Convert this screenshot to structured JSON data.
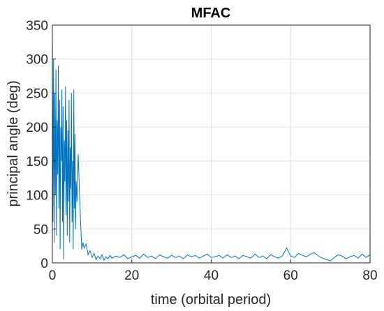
{
  "chart_data": {
    "type": "line",
    "title": "MFAC",
    "xlabel": "time (orbital period)",
    "ylabel": "principal angle (deg)",
    "xlim": [
      0,
      80
    ],
    "ylim": [
      0,
      350
    ],
    "x_ticks": [
      0,
      20,
      40,
      60,
      80
    ],
    "y_ticks": [
      0,
      50,
      100,
      150,
      200,
      250,
      300,
      350
    ],
    "grid": true,
    "line_color": "#0072BD",
    "series": [
      {
        "x": [
          0,
          0.15,
          0.3,
          0.45,
          0.6,
          0.75,
          0.9,
          1.05,
          1.2,
          1.35,
          1.5,
          1.65,
          1.8,
          1.95,
          2.1,
          2.25,
          2.4,
          2.55,
          2.7,
          2.85,
          3.0,
          3.15,
          3.3,
          3.45,
          3.6,
          3.75,
          3.9,
          4.05,
          4.2,
          4.35,
          4.5,
          4.65,
          4.8,
          4.95,
          5.1,
          5.25,
          5.4,
          5.55,
          5.7,
          5.85,
          6.0,
          6.2,
          6.5,
          6.8,
          7.1,
          7.4,
          7.7,
          8.0,
          8.5,
          9,
          9.5,
          10,
          10.5,
          11,
          11.5,
          12,
          12.5,
          13,
          13.5,
          14,
          14.5,
          15,
          16,
          17,
          18,
          19,
          20,
          21,
          22,
          23,
          24,
          25,
          26,
          27,
          28,
          29,
          30,
          31,
          32,
          33,
          34,
          35,
          36,
          37,
          38,
          39,
          40,
          41,
          42,
          43,
          44,
          45,
          46,
          47,
          48,
          49,
          50,
          51,
          52,
          53,
          54,
          55,
          56,
          57,
          58,
          59,
          60,
          61,
          62,
          63,
          64,
          65,
          66,
          67,
          68,
          69,
          70,
          71,
          72,
          73,
          74,
          75,
          76,
          77,
          78,
          79,
          80
        ],
        "y": [
          340,
          60,
          300,
          30,
          250,
          100,
          285,
          40,
          210,
          130,
          290,
          80,
          240,
          20,
          200,
          150,
          255,
          60,
          230,
          5,
          180,
          120,
          260,
          70,
          210,
          40,
          195,
          90,
          240,
          30,
          170,
          110,
          250,
          60,
          150,
          20,
          255,
          80,
          190,
          50,
          120,
          90,
          160,
          110,
          60,
          20,
          30,
          22,
          28,
          12,
          18,
          8,
          14,
          5,
          10,
          6,
          12,
          4,
          9,
          6,
          11,
          7,
          10,
          8,
          12,
          6,
          9,
          11,
          7,
          13,
          8,
          10,
          6,
          12,
          9,
          7,
          11,
          8,
          10,
          6,
          12,
          9,
          11,
          7,
          10,
          13,
          8,
          9,
          11,
          7,
          12,
          8,
          10,
          6,
          11,
          9,
          7,
          13,
          8,
          10,
          6,
          12,
          9,
          7,
          11,
          22,
          10,
          8,
          14,
          11,
          9,
          13,
          15,
          10,
          7,
          5,
          3,
          8,
          12,
          10,
          6,
          9,
          11,
          7,
          13,
          8,
          12
        ]
      }
    ]
  }
}
